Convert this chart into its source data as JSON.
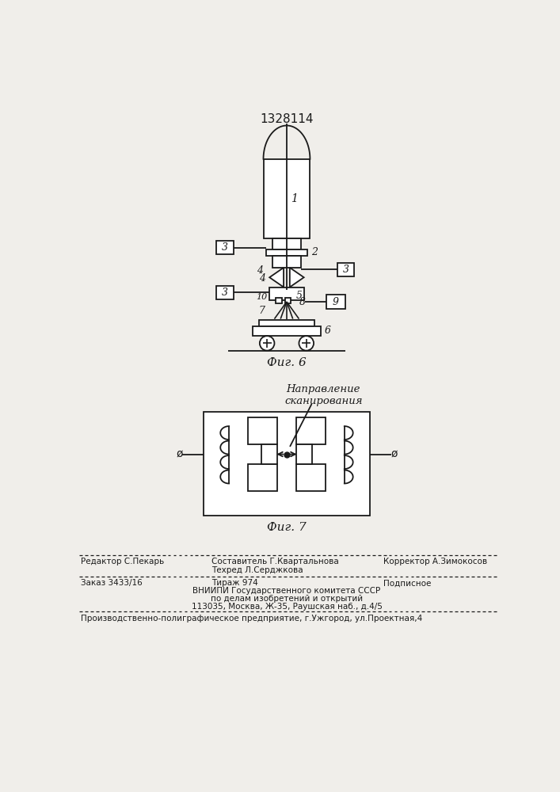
{
  "title_number": "1328114",
  "fig6_label": "Фиг. 6",
  "fig7_label": "Фиг. 7",
  "fig7_caption": "Направление\nсканирования",
  "footer_line1_left": "Редактор С.Пекарь",
  "footer_line1_mid1": "Составитель Г.Квартальнова",
  "footer_line1_mid2": "Техред Л.Серджкова",
  "footer_line1_right": "Корректор А.Зимокосов",
  "footer_line2_col1": "Заказ 3433/16",
  "footer_line2_col2": "Тираж 974",
  "footer_line2_col3": "Подписное",
  "footer_line3a": "ВНИИПИ Государственного комитета СССР",
  "footer_line3b": "по делам изобретений и открытий",
  "footer_line3c": "113035, Москва, Ж-35, Раушская наб., д.4/5",
  "footer_line4": "Производственно-полиграфическое предприятие, г.Ужгород, ул.Проектная,4",
  "bg_color": "#f0eeea",
  "line_color": "#1a1a1a"
}
